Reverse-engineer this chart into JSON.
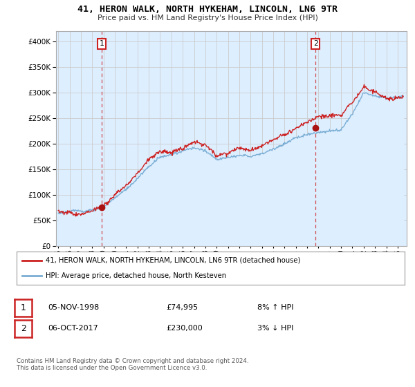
{
  "title": "41, HERON WALK, NORTH HYKEHAM, LINCOLN, LN6 9TR",
  "subtitle": "Price paid vs. HM Land Registry's House Price Index (HPI)",
  "legend_line1": "41, HERON WALK, NORTH HYKEHAM, LINCOLN, LN6 9TR (detached house)",
  "legend_line2": "HPI: Average price, detached house, North Kesteven",
  "annotation1_label": "1",
  "annotation1_date": "05-NOV-1998",
  "annotation1_price": "£74,995",
  "annotation1_hpi": "8% ↑ HPI",
  "annotation2_label": "2",
  "annotation2_date": "06-OCT-2017",
  "annotation2_price": "£230,000",
  "annotation2_hpi": "3% ↓ HPI",
  "footer": "Contains HM Land Registry data © Crown copyright and database right 2024.\nThis data is licensed under the Open Government Licence v3.0.",
  "hpi_color": "#7aaed4",
  "hpi_fill_color": "#ddeeff",
  "price_color": "#cc2222",
  "marker_color": "#aa1111",
  "background_color": "#ffffff",
  "grid_color": "#cccccc",
  "ylim": [
    0,
    420000
  ],
  "yticks": [
    0,
    50000,
    100000,
    150000,
    200000,
    250000,
    300000,
    350000,
    400000
  ],
  "sale1_year": 1998.85,
  "sale1_price": 74995,
  "sale2_year": 2017.75,
  "sale2_price": 230000,
  "xmin": 1994.8,
  "xmax": 2025.8
}
